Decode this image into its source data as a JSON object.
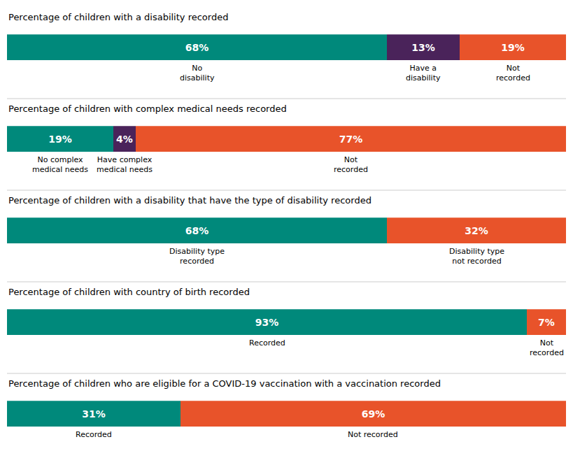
{
  "chart_data": [
    {
      "type": "bar",
      "orientation": "horizontal",
      "stacked": true,
      "title": "Percentage of children with a disability recorded",
      "categories": [
        null
      ],
      "xlim": [
        0,
        100
      ],
      "tick_labels": false,
      "grid": false,
      "data_labels": true,
      "series": [
        {
          "name": "No\ndisability",
          "color": "#00897B",
          "values": [
            68
          ],
          "value_labels": [
            "68%"
          ]
        },
        {
          "name": "Have a\ndisability",
          "color": "#4A235A",
          "values": [
            13
          ],
          "value_labels": [
            "13%"
          ]
        },
        {
          "name": "Not\nrecorded",
          "color": "#E8532A",
          "values": [
            19
          ],
          "value_labels": [
            "19%"
          ]
        }
      ]
    },
    {
      "type": "bar",
      "orientation": "horizontal",
      "stacked": true,
      "title": "Percentage of children with complex medical needs recorded",
      "categories": [
        null
      ],
      "xlim": [
        0,
        100
      ],
      "tick_labels": false,
      "grid": false,
      "data_labels": true,
      "series": [
        {
          "name": "No complex\nmedical needs",
          "color": "#00897B",
          "values": [
            19
          ],
          "value_labels": [
            "19%"
          ]
        },
        {
          "name": "Have complex\nmedical needs",
          "color": "#4A235A",
          "values": [
            4
          ],
          "value_labels": [
            "4%"
          ]
        },
        {
          "name": "Not\nrecorded",
          "color": "#E8532A",
          "values": [
            77
          ],
          "value_labels": [
            "77%"
          ]
        }
      ]
    },
    {
      "type": "bar",
      "orientation": "horizontal",
      "stacked": true,
      "title": "Percentage of children with a disability that have the type of disability recorded",
      "categories": [
        null
      ],
      "xlim": [
        0,
        100
      ],
      "tick_labels": false,
      "grid": false,
      "data_labels": true,
      "series": [
        {
          "name": "Disability type\nrecorded",
          "color": "#00897B",
          "values": [
            68
          ],
          "value_labels": [
            "68%"
          ]
        },
        {
          "name": "Disability type\nnot recorded",
          "color": "#E8532A",
          "values": [
            32
          ],
          "value_labels": [
            "32%"
          ]
        }
      ]
    },
    {
      "type": "bar",
      "orientation": "horizontal",
      "stacked": true,
      "title": "Percentage of children with country of birth recorded",
      "categories": [
        null
      ],
      "xlim": [
        0,
        100
      ],
      "tick_labels": false,
      "grid": false,
      "data_labels": true,
      "series": [
        {
          "name": "Recorded",
          "color": "#00897B",
          "values": [
            93
          ],
          "value_labels": [
            "93%"
          ]
        },
        {
          "name": "Not\nrecorded",
          "color": "#E8532A",
          "values": [
            7
          ],
          "value_labels": [
            "7%"
          ]
        }
      ]
    },
    {
      "type": "bar",
      "orientation": "horizontal",
      "stacked": true,
      "title": "Percentage of children who are eligible for a COVID-19 vaccination with a vaccination recorded",
      "categories": [
        null
      ],
      "xlim": [
        0,
        100
      ],
      "tick_labels": false,
      "grid": false,
      "data_labels": true,
      "series": [
        {
          "name": "Recorded",
          "color": "#00897B",
          "values": [
            31
          ],
          "value_labels": [
            "31%"
          ]
        },
        {
          "name": "Not recorded",
          "color": "#E8532A",
          "values": [
            69
          ],
          "value_labels": [
            "69%"
          ]
        }
      ]
    }
  ]
}
